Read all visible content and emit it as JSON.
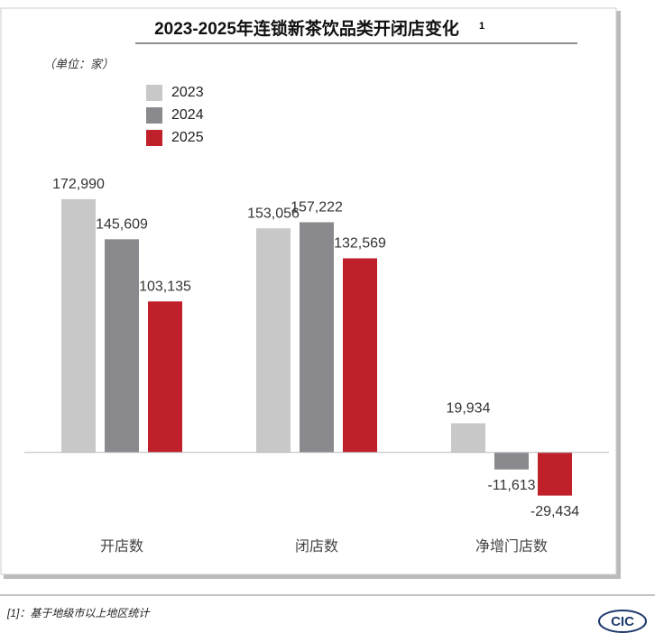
{
  "chart_data": {
    "type": "bar",
    "title": "2023-2025年连锁新茶饮品类开闭店变化",
    "title_note": "1",
    "unit": "（单位：家）",
    "categories": [
      "开店数",
      "闭店数",
      "净增门店数"
    ],
    "series": [
      {
        "name": "2023",
        "color": "#c8c8c8",
        "values": [
          172990,
          153056,
          19934
        ],
        "value_labels": [
          "172,990",
          "153,056",
          "19,934"
        ]
      },
      {
        "name": "2024",
        "color": "#8a8a8e",
        "values": [
          145609,
          157222,
          -11613
        ],
        "value_labels": [
          "145,609",
          "157,222",
          "-11,613"
        ]
      },
      {
        "name": "2025",
        "color": "#c0202a",
        "values": [
          103135,
          132569,
          -29434
        ],
        "value_labels": [
          "103,135",
          "132,569",
          "-29,434"
        ]
      }
    ],
    "ylim": [
      -50000,
      200000
    ]
  },
  "footnote": "[1]：基于地级市以上地区统计",
  "logo": "CIC"
}
